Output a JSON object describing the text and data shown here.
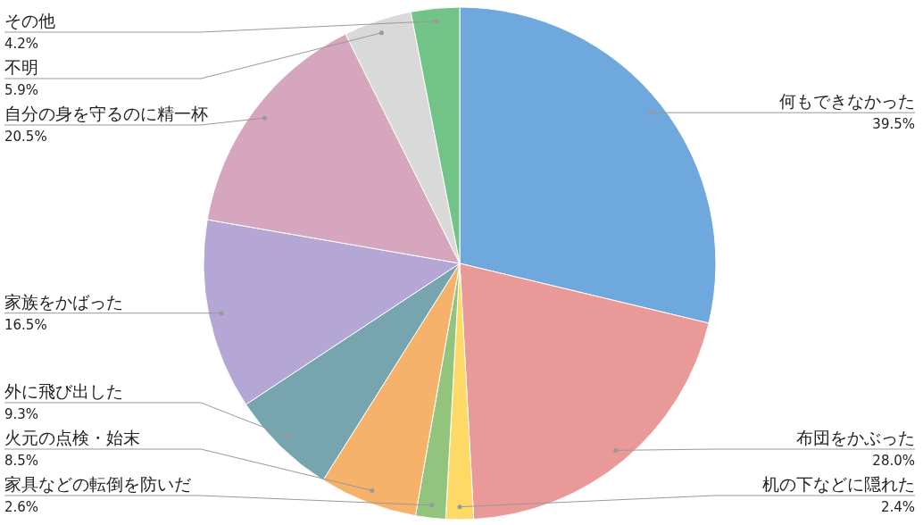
{
  "chart_data": {
    "type": "pie",
    "categories": [
      "何もできなかった",
      "布団をかぶった",
      "机の下などに隠れた",
      "家具などの転倒を防いだ",
      "火元の点検・始末",
      "外に飛び出した",
      "家族をかばった",
      "自分の身を守るのに精一杯",
      "不明",
      "その他"
    ],
    "values": [
      39.5,
      28.0,
      2.4,
      2.6,
      8.5,
      9.3,
      16.5,
      20.5,
      5.9,
      4.2
    ],
    "colors": [
      "#6fa8dc",
      "#ea9999",
      "#ffd966",
      "#93c47d",
      "#f6b26b",
      "#76a5af",
      "#b4a7d6",
      "#d5a6bd",
      "#d9d9d9",
      "#72c388"
    ],
    "value_labels": [
      "39.5%",
      "28.0%",
      "2.4%",
      "2.6%",
      "8.5%",
      "9.3%",
      "16.5%",
      "20.5%",
      "5.9%",
      "4.2%"
    ]
  }
}
